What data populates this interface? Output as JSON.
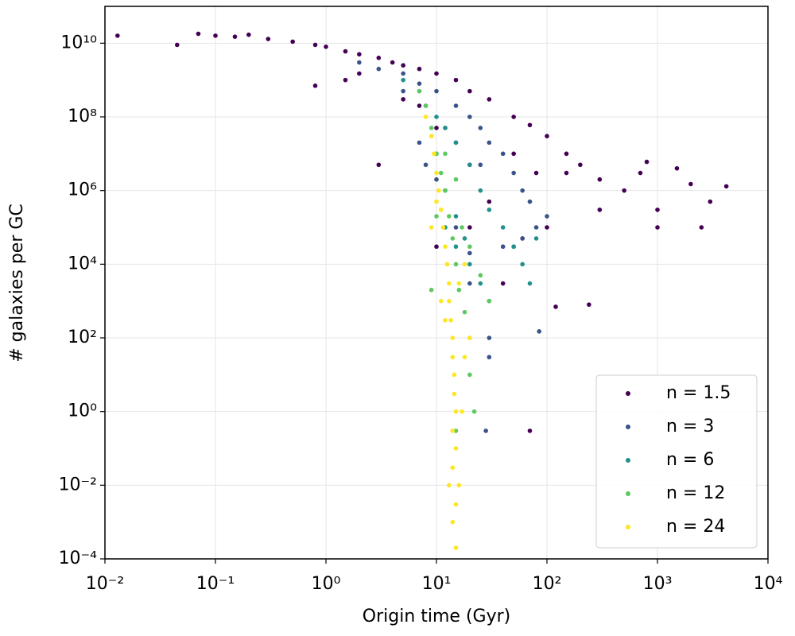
{
  "chart_data": {
    "type": "scatter",
    "xlabel": "Origin time (Gyr)",
    "ylabel": "# galaxies per GC",
    "xscale": "log",
    "yscale": "log",
    "grid": true,
    "legend": "lower right",
    "xlim": [
      0.01,
      10000
    ],
    "ylim": [
      0.0001,
      100000000000
    ],
    "xticks": [
      {
        "value": 0.01,
        "label": "10⁻²"
      },
      {
        "value": 0.1,
        "label": "10⁻¹"
      },
      {
        "value": 1,
        "label": "10⁰"
      },
      {
        "value": 10,
        "label": "10¹"
      },
      {
        "value": 100,
        "label": "10²"
      },
      {
        "value": 1000,
        "label": "10³"
      },
      {
        "value": 10000,
        "label": "10⁴"
      }
    ],
    "yticks": [
      {
        "value": 0.0001,
        "label": "10⁻⁴"
      },
      {
        "value": 0.01,
        "label": "10⁻²"
      },
      {
        "value": 1,
        "label": "10⁰"
      },
      {
        "value": 100,
        "label": "10²"
      },
      {
        "value": 10000,
        "label": "10⁴"
      },
      {
        "value": 1000000,
        "label": "10⁶"
      },
      {
        "value": 100000000,
        "label": "10⁸"
      },
      {
        "value": 10000000000,
        "label": "10¹⁰"
      }
    ],
    "series": [
      {
        "name": "n = 1.5",
        "color": "#440154",
        "x": [
          0.013,
          0.045,
          0.07,
          0.1,
          0.15,
          0.2,
          0.3,
          0.5,
          0.8,
          0.8,
          1,
          1.5,
          1.5,
          2,
          2,
          3,
          3,
          4,
          5,
          5,
          7,
          7,
          10,
          10,
          15,
          15,
          20,
          20,
          30,
          30,
          50,
          50,
          70,
          70,
          80,
          100,
          100,
          120,
          150,
          150,
          200,
          240,
          300,
          300,
          500,
          700,
          800,
          1000,
          1000,
          1500,
          2000,
          2500,
          3000,
          4200,
          10,
          20,
          40,
          60
        ],
        "values": [
          16000000000.0,
          9000000000.0,
          18000000000.0,
          16000000000.0,
          15000000000.0,
          17000000000.0,
          13000000000.0,
          11000000000.0,
          9000000000.0,
          700000000.0,
          8000000000.0,
          6000000000.0,
          1000000000.0,
          5000000000.0,
          1500000000.0,
          4000000000.0,
          5000000.0,
          3000000000.0,
          2500000000.0,
          300000000.0,
          2000000000.0,
          200000000.0,
          1500000000.0,
          50000000.0,
          1000000000.0,
          20000000.0,
          500000000.0,
          5000000.0,
          300000000.0,
          500000.0,
          100000000.0,
          10000000.0,
          60000000.0,
          0.3,
          3000000.0,
          30000000.0,
          100000.0,
          700,
          10000000.0,
          3000000.0,
          5000000.0,
          800,
          2000000.0,
          300000.0,
          1000000.0,
          3000000.0,
          6000000.0,
          300000.0,
          100000.0,
          4000000.0,
          1500000.0,
          100000.0,
          500000.0,
          1300000.0,
          30000.0,
          100000.0,
          3000.0,
          50000.0
        ]
      },
      {
        "name": "n = 3",
        "color": "#3b528b",
        "x": [
          2,
          3,
          5,
          7,
          10,
          15,
          20,
          25,
          30,
          40,
          50,
          60,
          70,
          80,
          100,
          5,
          7,
          8,
          10,
          12,
          15,
          20,
          30,
          30,
          85,
          28,
          20,
          40,
          60,
          12,
          25
        ],
        "values": [
          3000000000.0,
          2000000000.0,
          1500000000.0,
          800000000.0,
          500000000.0,
          200000000.0,
          100000000.0,
          50000000.0,
          20000000.0,
          10000000.0,
          3000000.0,
          1000000.0,
          500000.0,
          100000.0,
          200000.0,
          500000000.0,
          20000000.0,
          5000000.0,
          2000000.0,
          1000000.0,
          100000.0,
          20000.0,
          100,
          30,
          150,
          0.3,
          3000.0,
          30000.0,
          50000.0,
          50000000.0,
          5000000.0
        ]
      },
      {
        "name": "n = 6",
        "color": "#21918c",
        "x": [
          5,
          7,
          8,
          10,
          12,
          15,
          20,
          25,
          30,
          40,
          50,
          60,
          70,
          10,
          12,
          15,
          18,
          20,
          25,
          30,
          12,
          15,
          50,
          80
        ],
        "values": [
          1000000000.0,
          500000000.0,
          200000000.0,
          100000000.0,
          50000000.0,
          20000000.0,
          5000000.0,
          1000000.0,
          300000.0,
          100000.0,
          30000.0,
          10000.0,
          3000.0,
          10000000.0,
          1000000.0,
          200000.0,
          50000.0,
          10000.0,
          3000.0,
          1000.0,
          100000.0,
          30000.0,
          30000.0,
          50000.0
        ]
      },
      {
        "name": "n = 12",
        "color": "#5ec962",
        "x": [
          7,
          8,
          9,
          10,
          11,
          12,
          13,
          14,
          15,
          16,
          18,
          20,
          20,
          22,
          15,
          9,
          10,
          20,
          25,
          30,
          12,
          15,
          17
        ],
        "values": [
          500000000.0,
          200000000.0,
          50000000.0,
          10000000.0,
          3000000.0,
          1000000.0,
          200000.0,
          50000.0,
          10000.0,
          2000.0,
          500,
          100,
          10,
          1,
          0.3,
          2000.0,
          200000.0,
          30000.0,
          5000.0,
          1000.0,
          10000000.0,
          2000000.0,
          100000.0
        ]
      },
      {
        "name": "n = 24",
        "color": "#fde725",
        "x": [
          8,
          9,
          9.5,
          10,
          10.5,
          11,
          11.5,
          12,
          12.5,
          13,
          13,
          13.5,
          14,
          14,
          14.5,
          14.5,
          15,
          14,
          15,
          14,
          13,
          15,
          14,
          15,
          16,
          17,
          18,
          20,
          12,
          11,
          16,
          18,
          10,
          9
        ],
        "values": [
          100000000.0,
          30000000.0,
          10000000.0,
          3000000.0,
          1000000.0,
          300000.0,
          100000.0,
          30000.0,
          10000.0,
          3000.0,
          1000.0,
          300,
          100,
          30,
          10,
          3,
          1,
          0.3,
          0.1,
          0.03,
          0.01,
          0.003,
          0.001,
          0.0002,
          0.01,
          1,
          30,
          100,
          300,
          1000.0,
          3000.0,
          10000.0,
          500000.0,
          100000.0
        ]
      }
    ]
  }
}
